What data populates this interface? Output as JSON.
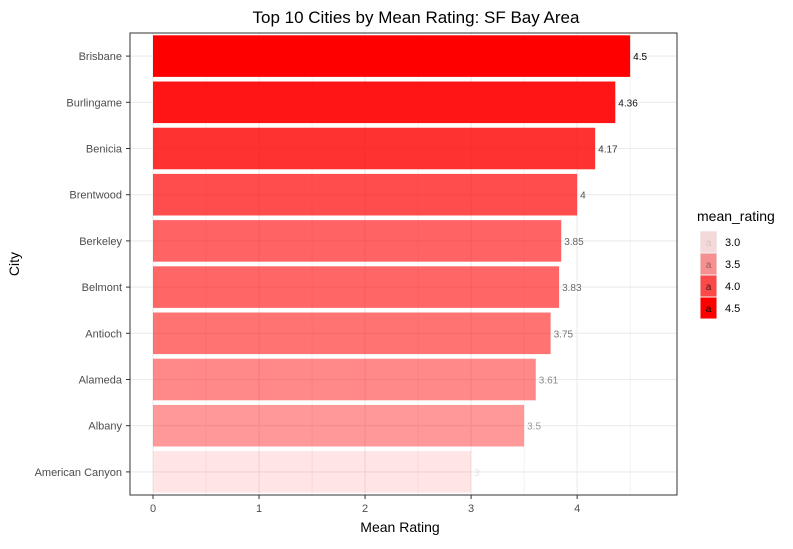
{
  "chart_data": {
    "type": "bar",
    "orientation": "horizontal",
    "title": "Top 10 Cities by Mean Rating: SF Bay Area",
    "xlabel": "Mean Rating",
    "ylabel": "City",
    "xlim": [
      0,
      4.725
    ],
    "x_ticks": [
      0,
      1,
      2,
      3,
      4
    ],
    "grid": true,
    "categories": [
      "Brisbane",
      "Burlingame",
      "Benicia",
      "Brentwood",
      "Berkeley",
      "Belmont",
      "Antioch",
      "Alameda",
      "Albany",
      "American Canyon"
    ],
    "values": [
      4.5,
      4.36,
      4.17,
      4,
      3.85,
      3.83,
      3.75,
      3.61,
      3.5,
      3
    ],
    "value_labels": [
      "4.5",
      "4.36",
      "4.17",
      "4",
      "3.85",
      "3.83",
      "3.75",
      "3.61",
      "3.5",
      "3"
    ],
    "color_scale": {
      "low": 3.0,
      "high": 4.5,
      "color": "#ff0000"
    },
    "legend": {
      "title": "mean_rating",
      "placement": "right",
      "key_glyph": "a",
      "entries": [
        {
          "label": "3.0",
          "value": 3.0
        },
        {
          "label": "3.5",
          "value": 3.5
        },
        {
          "label": "4.0",
          "value": 4.0
        },
        {
          "label": "4.5",
          "value": 4.5
        }
      ]
    }
  }
}
